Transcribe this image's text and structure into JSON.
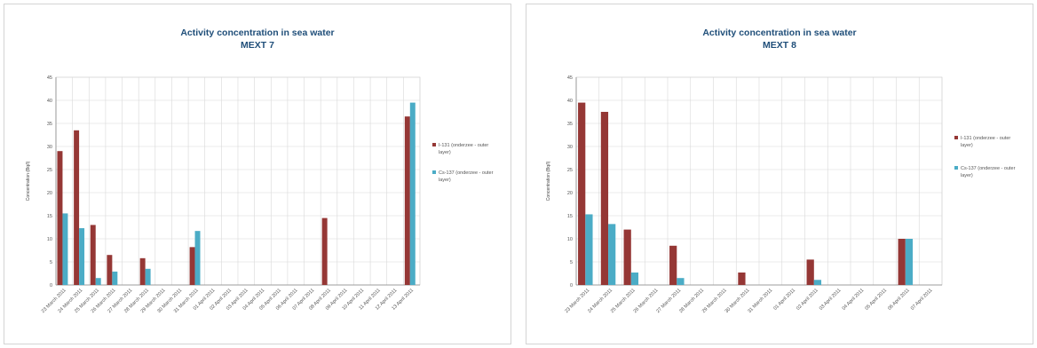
{
  "chart_data": [
    {
      "type": "bar",
      "title": "Activity concentration in sea water",
      "subtitle": "MEXT  7",
      "ylabel": "Concentration (Bq/l)",
      "xlabel": "",
      "ylim": [
        0,
        45
      ],
      "yticks": [
        0,
        5,
        10,
        15,
        20,
        25,
        30,
        35,
        40,
        45
      ],
      "grid": true,
      "legend": "right",
      "categories": [
        "23 March 2011",
        "24 March 2011",
        "25 March 2011",
        "26 March 2011",
        "27 March 2011",
        "28 March 2011",
        "29 March 2011",
        "30 March 2011",
        "31 March 2011",
        "01 April 2011",
        "02 April 2011",
        "03 April 2011",
        "04 April 2011",
        "05 April 2011",
        "06 April 2011",
        "07 April 2011",
        "08 April 2011",
        "09 April 2011",
        "10 April 2011",
        "11 April 2011",
        "12 April 2011",
        "13 April 2011"
      ],
      "series": [
        {
          "name": "I-131 (onderzee - outer layer)",
          "color": "#953735",
          "values": [
            29,
            33.5,
            13,
            6.5,
            0,
            5.8,
            0,
            0,
            8.2,
            0,
            0,
            0,
            0,
            0,
            0,
            0,
            14.5,
            0,
            0,
            0,
            0,
            36.5
          ]
        },
        {
          "name": "Cs-137 (onderzee - outer layer)",
          "color": "#4bacc6",
          "values": [
            15.5,
            12.3,
            1.5,
            2.9,
            0,
            3.5,
            0,
            0,
            11.7,
            0,
            0,
            0,
            0,
            0,
            0,
            0,
            0,
            0,
            0,
            0,
            0,
            39.5
          ]
        }
      ]
    },
    {
      "type": "bar",
      "title": "Activity concentration in sea water",
      "subtitle": "MEXT  8",
      "ylabel": "Concentration (Bq/l)",
      "xlabel": "",
      "ylim": [
        0,
        45
      ],
      "yticks": [
        0,
        5,
        10,
        15,
        20,
        25,
        30,
        35,
        40,
        45
      ],
      "grid": true,
      "legend": "right",
      "categories": [
        "23 March 2011",
        "24 March 2011",
        "25 March 2011",
        "26 March 2011",
        "27 March 2011",
        "28 March 2011",
        "29 March 2011",
        "30 March 2011",
        "31 March 2011",
        "01 April 2011",
        "02 April 2011",
        "03 April 2011",
        "04 April 2011",
        "05 April 2011",
        "06 April 2011",
        "07 April 2011"
      ],
      "series": [
        {
          "name": "I-131 (onderzee - outer layer)",
          "color": "#953735",
          "values": [
            39.5,
            37.5,
            12,
            0,
            8.5,
            0,
            0,
            2.7,
            0,
            0,
            5.5,
            0,
            0,
            0,
            10,
            0
          ]
        },
        {
          "name": "Cs-137 (onderzee - outer layer)",
          "color": "#4bacc6",
          "values": [
            15.3,
            13.2,
            2.7,
            0,
            1.5,
            0,
            0,
            0,
            0,
            0,
            1.1,
            0,
            0,
            0,
            10,
            0
          ]
        }
      ]
    }
  ]
}
